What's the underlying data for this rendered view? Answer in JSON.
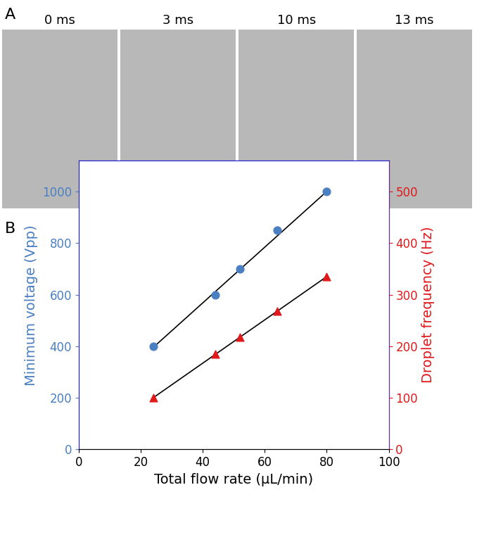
{
  "panel_a": {
    "label": "A",
    "frames": [
      "0 ms",
      "3 ms",
      "10 ms",
      "13 ms"
    ]
  },
  "chart_data": {
    "label": "B",
    "type": "scatter",
    "x_label": "Total flow rate (μL/min)",
    "y_label": "Minimum voltage (Vpp)",
    "y2_label": "Droplet frequency (Hz)",
    "xlim": [
      0,
      100
    ],
    "xticks": [
      0,
      20,
      40,
      60,
      80,
      100
    ],
    "ylim": [
      0,
      1120
    ],
    "yticks": [
      0,
      200,
      400,
      600,
      800,
      1000
    ],
    "y2lim": [
      0,
      560
    ],
    "y2ticks": [
      0,
      100,
      200,
      300,
      400,
      500
    ],
    "grid": false,
    "series": [
      {
        "type": "scatter",
        "axis": "y",
        "color": "#4a7fc1",
        "marker": "o",
        "x": [
          24,
          44,
          52,
          64,
          80
        ],
        "values": [
          400,
          600,
          700,
          850,
          1000
        ]
      },
      {
        "type": "line",
        "axis": "y",
        "color": "#000000",
        "line_style": "solid",
        "x": [
          24,
          80
        ],
        "values": [
          395,
          1000
        ]
      },
      {
        "type": "scatter",
        "axis": "y2",
        "color": "#e0191b",
        "marker": "^",
        "x": [
          24,
          44,
          52,
          64,
          80
        ],
        "values": [
          100,
          185,
          218,
          268,
          335
        ]
      },
      {
        "type": "line",
        "axis": "y2",
        "color": "#000000",
        "line_style": "solid",
        "x": [
          24,
          80
        ],
        "values": [
          100,
          335
        ]
      }
    ]
  }
}
